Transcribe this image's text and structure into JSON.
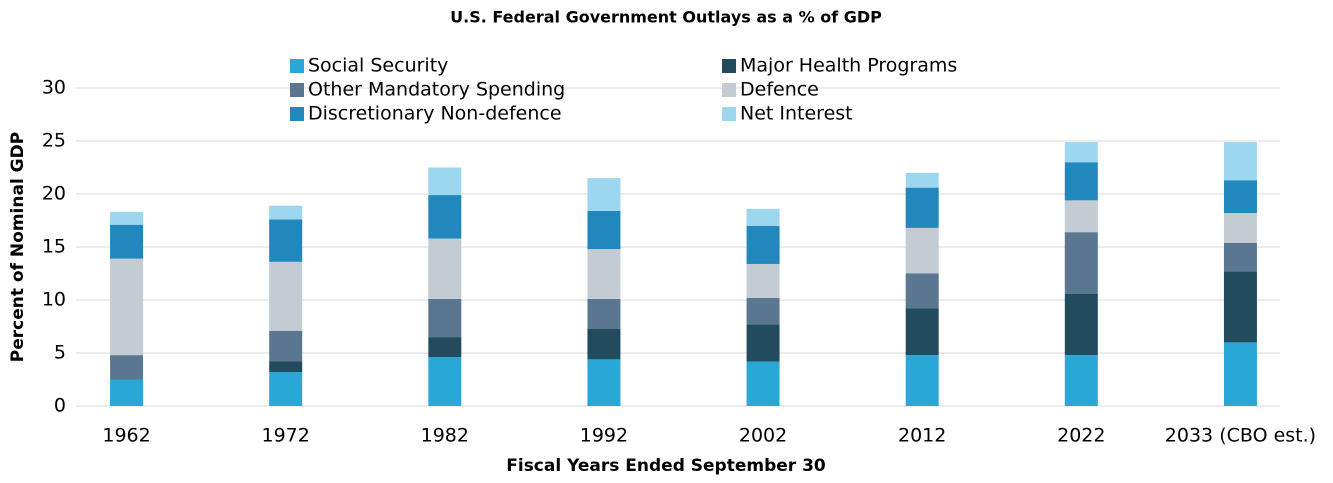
{
  "chart_data": {
    "type": "stacked_bar",
    "title": "U.S. Federal Government Outlays as a % of GDP",
    "x_label": "Fiscal Years Ended September 30",
    "y_label": "Percent of Nominal GDP",
    "categories": [
      "1962",
      "1972",
      "1982",
      "1992",
      "2002",
      "2012",
      "2022",
      "2033 (CBO est.)"
    ],
    "series": [
      {
        "name": "Social Security",
        "color": "#29a8d8",
        "values": [
          2.5,
          3.2,
          4.6,
          4.4,
          4.2,
          4.8,
          4.8,
          6.0
        ]
      },
      {
        "name": "Major Health Programs",
        "color": "#234b5e",
        "values": [
          0,
          1.0,
          1.9,
          2.9,
          3.5,
          4.4,
          5.8,
          6.7
        ]
      },
      {
        "name": "Other Mandatory Spending",
        "color": "#5b7690",
        "values": [
          2.3,
          2.9,
          3.6,
          2.8,
          2.5,
          3.3,
          5.8,
          2.7
        ]
      },
      {
        "name": "Defence",
        "color": "#c4ccd3",
        "values": [
          9.1,
          6.5,
          5.7,
          4.7,
          3.2,
          4.3,
          3.0,
          2.8
        ]
      },
      {
        "name": "Discretionary Non-defence",
        "color": "#2187bd",
        "values": [
          3.2,
          4.0,
          4.1,
          3.6,
          3.6,
          3.8,
          3.6,
          3.1
        ]
      },
      {
        "name": "Net Interest",
        "color": "#9dd6ef",
        "values": [
          1.2,
          1.3,
          2.6,
          3.1,
          1.6,
          1.4,
          1.9,
          3.6
        ]
      }
    ],
    "ylim": [
      0,
      30
    ],
    "yticks": [
      0,
      5,
      10,
      15,
      20,
      25,
      30
    ],
    "grid": true,
    "legend": "top"
  }
}
